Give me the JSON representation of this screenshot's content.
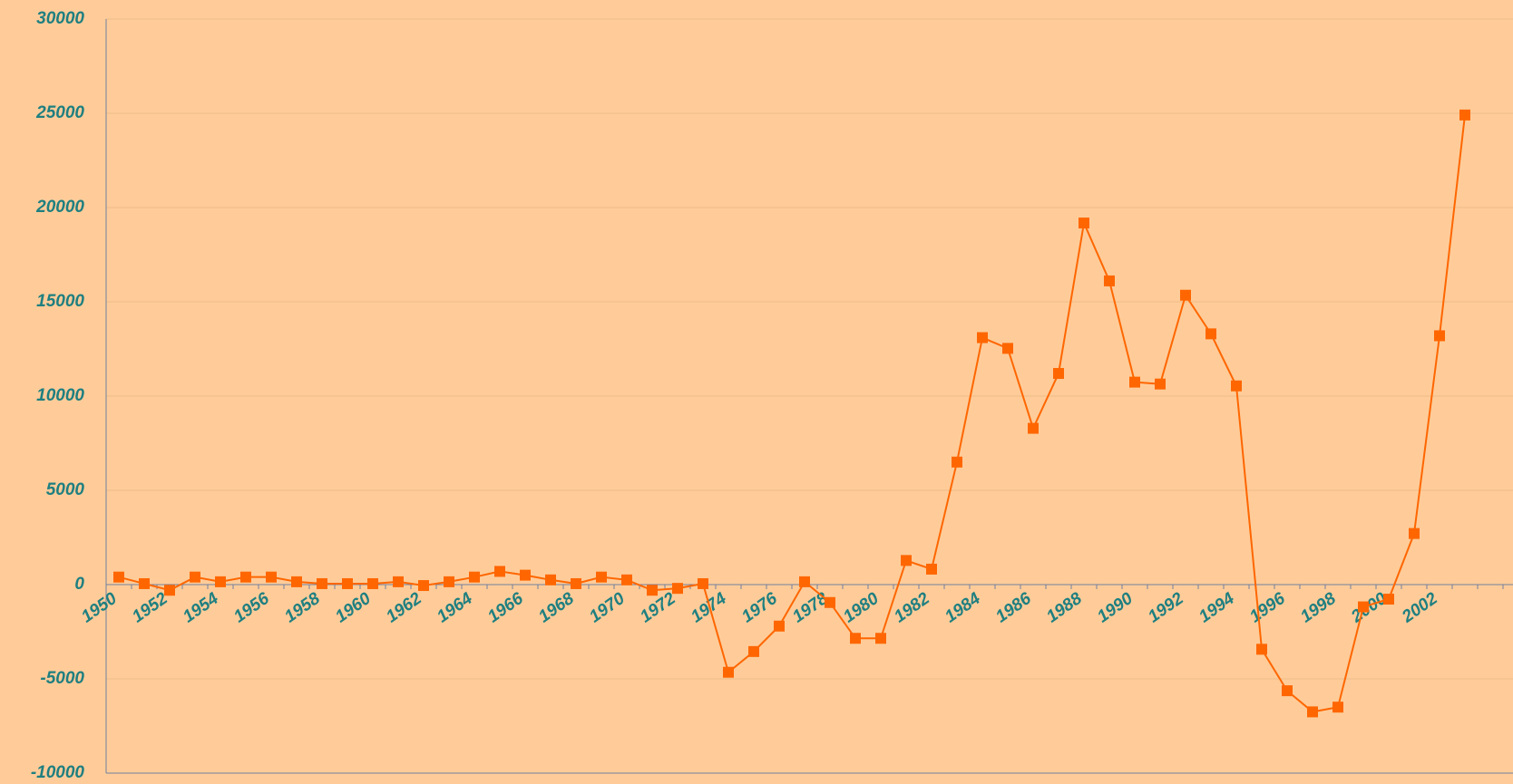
{
  "chart_data": {
    "type": "line",
    "categories": [
      "1950",
      null,
      "1952",
      null,
      "1954",
      null,
      "1956",
      null,
      "1958",
      null,
      "1960",
      null,
      "1962",
      null,
      "1964",
      null,
      "1966",
      null,
      "1968",
      null,
      "1970",
      null,
      "1972",
      null,
      "1974",
      null,
      "1976",
      null,
      "1978",
      null,
      "1980",
      null,
      "1982",
      null,
      "1984",
      null,
      "1986",
      null,
      "1988",
      null,
      "1990",
      null,
      "1992",
      null,
      "1994",
      null,
      "1996",
      null,
      "1998",
      null,
      "2000",
      null,
      "2002",
      null
    ],
    "series": [
      {
        "color": "#ff6600",
        "marker": "square",
        "values": [
          400,
          50,
          -300,
          400,
          150,
          400,
          400,
          150,
          50,
          50,
          50,
          150,
          -50,
          150,
          400,
          700,
          500,
          250,
          50,
          400,
          250,
          -300,
          -200,
          50,
          -4650,
          -3550,
          -2200,
          150,
          -950,
          -2850,
          -2850,
          1280,
          820,
          6500,
          13100,
          12530,
          8290,
          11200,
          19180,
          16110,
          10740,
          10640,
          15350,
          13300,
          10540,
          -3430,
          -5630,
          -6750,
          -6500,
          -1180,
          -770,
          2710,
          13200,
          24910
        ]
      }
    ],
    "ylim": [
      -10000,
      30000
    ],
    "yticks": [
      -10000,
      -5000,
      0,
      5000,
      10000,
      15000,
      20000,
      25000,
      30000
    ],
    "grid": true
  }
}
